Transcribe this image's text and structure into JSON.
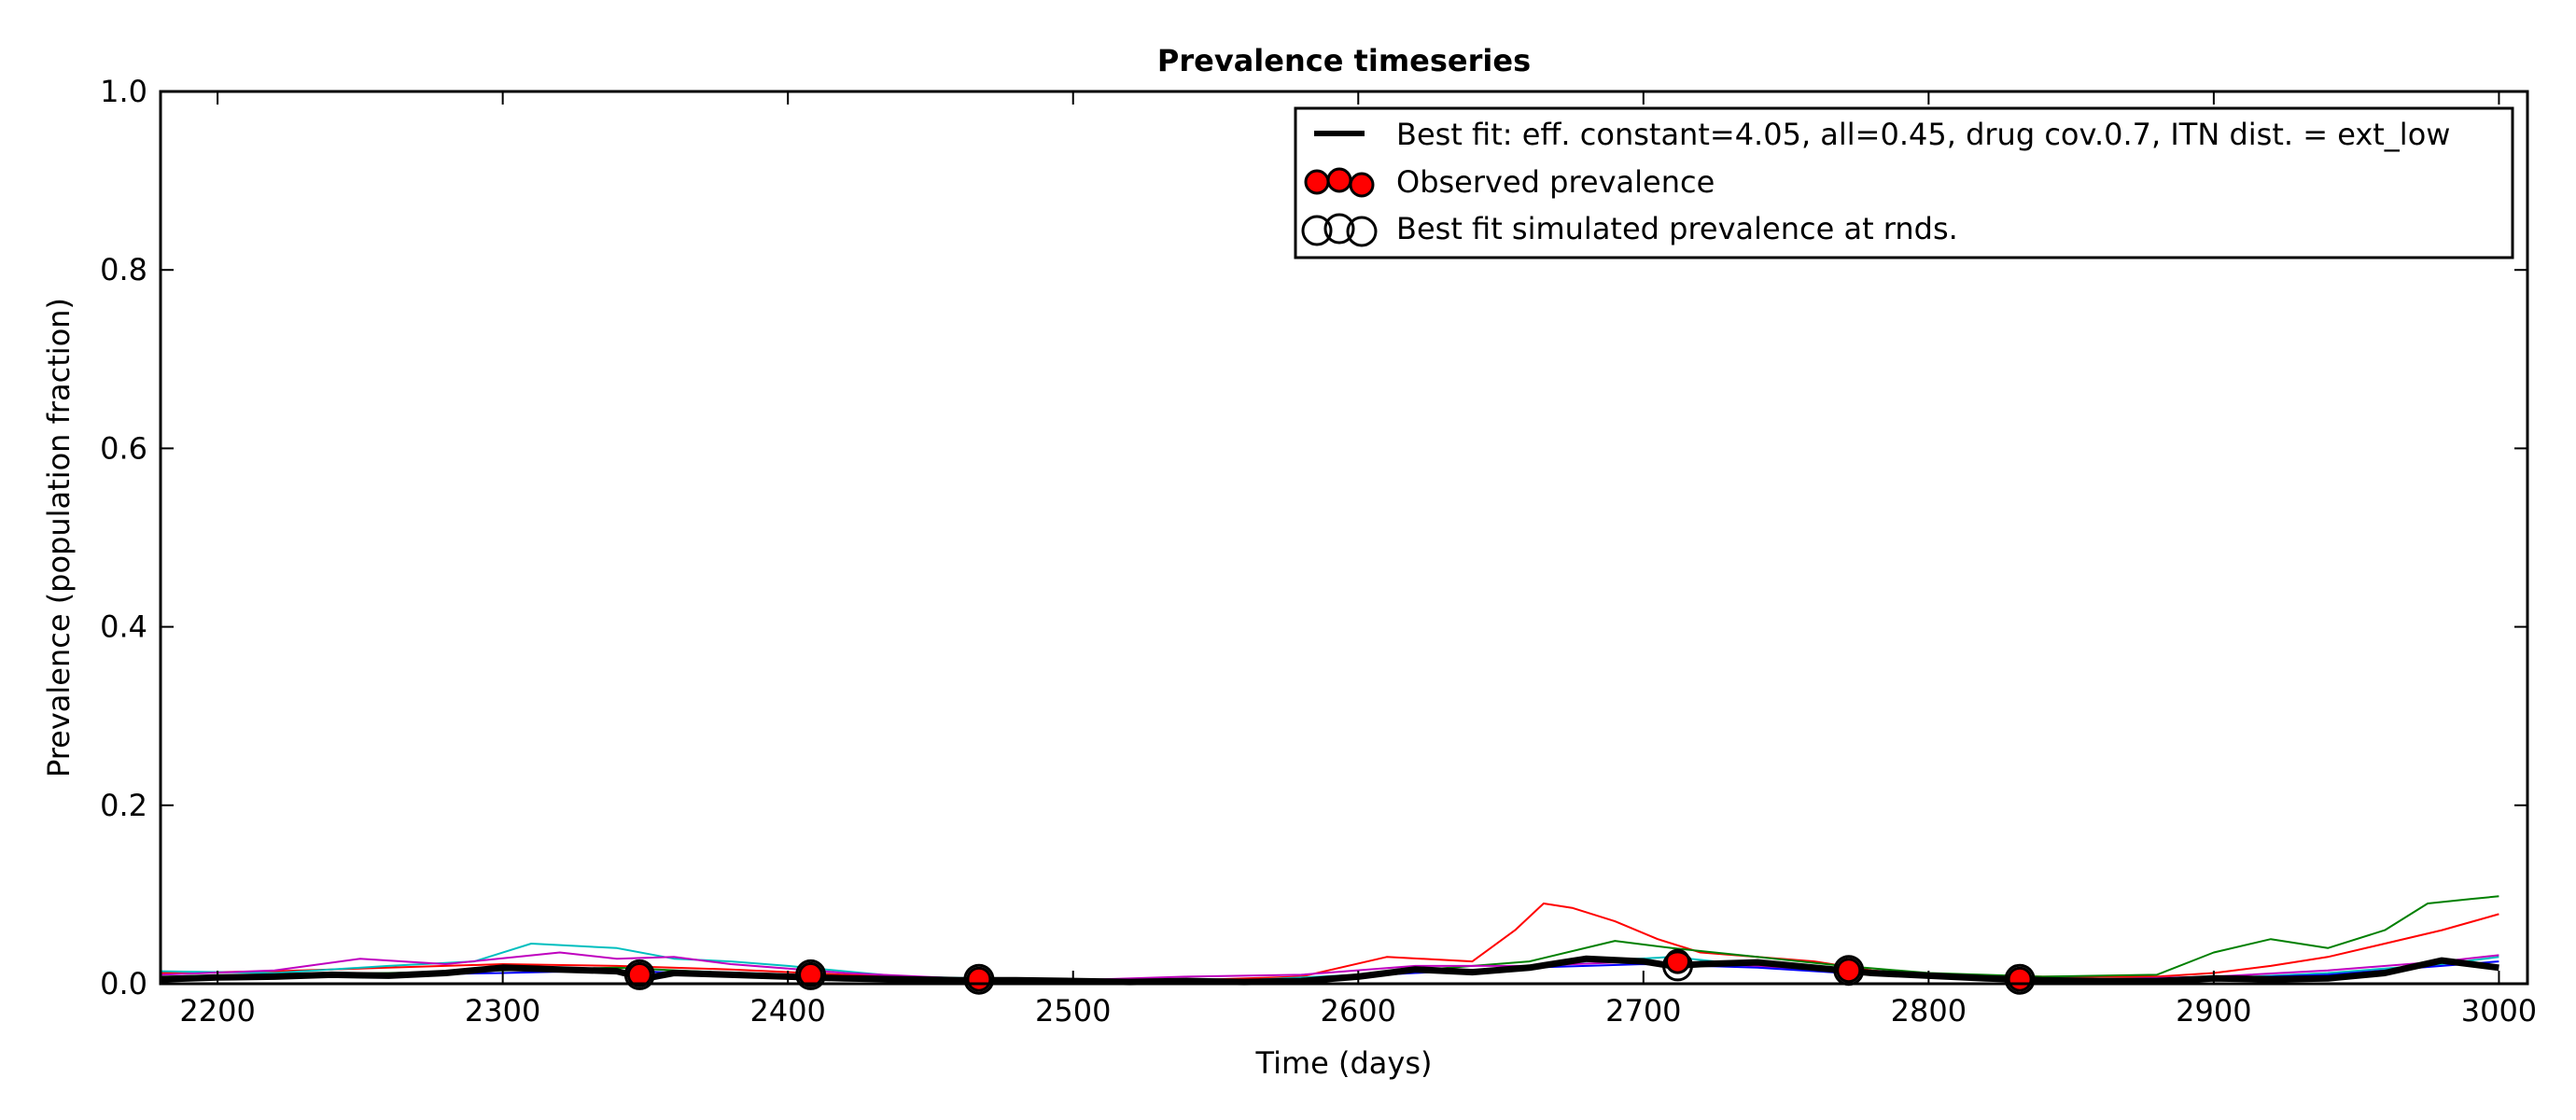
{
  "chart_data": {
    "type": "line",
    "title": "Prevalence timeseries",
    "xlabel": "Time (days)",
    "ylabel": "Prevalence (population fraction)",
    "xlim": [
      2180,
      3010
    ],
    "ylim": [
      0.0,
      1.0
    ],
    "xticks": [
      "2200",
      "2300",
      "2400",
      "2500",
      "2600",
      "2700",
      "2800",
      "2900",
      "3000"
    ],
    "yticks": [
      "0.0",
      "0.2",
      "0.4",
      "0.6",
      "0.8",
      "1.0"
    ],
    "grid": false,
    "legend_position": "top-right",
    "legend": [
      "Best fit: eff. constant=4.05, all=0.45, drug cov.0.7, ITN dist. = ext_low",
      "Observed prevalence",
      "Best fit simulated prevalence at rnds."
    ],
    "series": [
      {
        "name": "Best fit: eff. constant=4.05, all=0.45, drug cov.0.7, ITN dist. = ext_low",
        "color": "#000000",
        "x": [
          2180,
          2200,
          2220,
          2240,
          2260,
          2280,
          2300,
          2320,
          2340,
          2350,
          2360,
          2380,
          2400,
          2420,
          2440,
          2460,
          2480,
          2500,
          2520,
          2540,
          2560,
          2580,
          2600,
          2620,
          2640,
          2660,
          2680,
          2700,
          2710,
          2720,
          2740,
          2760,
          2780,
          2800,
          2820,
          2840,
          2860,
          2880,
          2900,
          2920,
          2940,
          2960,
          2980,
          3000
        ],
        "y": [
          0.005,
          0.007,
          0.008,
          0.01,
          0.009,
          0.012,
          0.018,
          0.016,
          0.014,
          0.006,
          0.012,
          0.01,
          0.008,
          0.006,
          0.005,
          0.004,
          0.004,
          0.003,
          0.002,
          0.003,
          0.002,
          0.003,
          0.008,
          0.016,
          0.013,
          0.018,
          0.028,
          0.025,
          0.02,
          0.022,
          0.024,
          0.018,
          0.012,
          0.009,
          0.006,
          0.004,
          0.003,
          0.003,
          0.006,
          0.005,
          0.006,
          0.012,
          0.026,
          0.018
        ]
      },
      {
        "name": "",
        "color": "#ff0000",
        "x": [
          2180,
          2220,
          2260,
          2300,
          2340,
          2380,
          2420,
          2460,
          2500,
          2540,
          2580,
          2610,
          2640,
          2655,
          2665,
          2675,
          2690,
          2705,
          2720,
          2740,
          2760,
          2780,
          2800,
          2840,
          2880,
          2900,
          2920,
          2940,
          2960,
          2980,
          3000
        ],
        "y": [
          0.012,
          0.014,
          0.018,
          0.022,
          0.02,
          0.016,
          0.01,
          0.006,
          0.004,
          0.004,
          0.008,
          0.03,
          0.025,
          0.06,
          0.09,
          0.085,
          0.07,
          0.05,
          0.035,
          0.03,
          0.025,
          0.015,
          0.01,
          0.008,
          0.008,
          0.012,
          0.02,
          0.03,
          0.045,
          0.06,
          0.078
        ]
      },
      {
        "name": "",
        "color": "#008000",
        "x": [
          2180,
          2220,
          2260,
          2300,
          2340,
          2380,
          2420,
          2460,
          2500,
          2540,
          2580,
          2620,
          2660,
          2690,
          2710,
          2740,
          2770,
          2800,
          2840,
          2880,
          2900,
          2920,
          2940,
          2960,
          2975,
          2990,
          3000
        ],
        "y": [
          0.008,
          0.01,
          0.012,
          0.015,
          0.018,
          0.012,
          0.008,
          0.005,
          0.003,
          0.003,
          0.005,
          0.015,
          0.025,
          0.048,
          0.04,
          0.03,
          0.02,
          0.012,
          0.008,
          0.01,
          0.035,
          0.05,
          0.04,
          0.06,
          0.09,
          0.095,
          0.098
        ]
      },
      {
        "name": "",
        "color": "#00bfbf",
        "x": [
          2180,
          2220,
          2260,
          2290,
          2310,
          2340,
          2360,
          2380,
          2400,
          2440,
          2480,
          2520,
          2560,
          2600,
          2640,
          2680,
          2710,
          2740,
          2780,
          2820,
          2860,
          2900,
          2940,
          2980,
          3000
        ],
        "y": [
          0.014,
          0.012,
          0.02,
          0.025,
          0.045,
          0.04,
          0.028,
          0.025,
          0.02,
          0.008,
          0.005,
          0.004,
          0.004,
          0.01,
          0.015,
          0.025,
          0.03,
          0.02,
          0.01,
          0.005,
          0.004,
          0.006,
          0.012,
          0.022,
          0.03
        ]
      },
      {
        "name": "",
        "color": "#bf00bf",
        "x": [
          2180,
          2220,
          2250,
          2280,
          2320,
          2340,
          2360,
          2380,
          2420,
          2460,
          2500,
          2540,
          2580,
          2620,
          2660,
          2700,
          2740,
          2780,
          2820,
          2860,
          2900,
          2940,
          2980,
          3000
        ],
        "y": [
          0.01,
          0.015,
          0.028,
          0.022,
          0.035,
          0.028,
          0.03,
          0.022,
          0.012,
          0.006,
          0.004,
          0.008,
          0.01,
          0.02,
          0.02,
          0.025,
          0.02,
          0.01,
          0.006,
          0.005,
          0.008,
          0.015,
          0.025,
          0.032
        ]
      },
      {
        "name": "",
        "color": "#0000ff",
        "x": [
          2180,
          2220,
          2260,
          2300,
          2340,
          2380,
          2420,
          2460,
          2500,
          2540,
          2580,
          2620,
          2660,
          2700,
          2740,
          2780,
          2820,
          2860,
          2900,
          2940,
          2980,
          3000
        ],
        "y": [
          0.006,
          0.008,
          0.01,
          0.012,
          0.015,
          0.01,
          0.007,
          0.004,
          0.003,
          0.003,
          0.005,
          0.012,
          0.018,
          0.022,
          0.018,
          0.01,
          0.005,
          0.004,
          0.006,
          0.01,
          0.02,
          0.025
        ]
      }
    ],
    "observed_prevalence": {
      "x": [
        2348,
        2408,
        2467,
        2712,
        2772,
        2832
      ],
      "y": [
        0.01,
        0.01,
        0.005,
        0.025,
        0.015,
        0.005
      ]
    },
    "simulated_prevalence_at_rnds": {
      "x": [
        2348,
        2408,
        2467,
        2712,
        2772,
        2832
      ],
      "y": [
        0.01,
        0.01,
        0.005,
        0.02,
        0.015,
        0.005
      ]
    }
  }
}
